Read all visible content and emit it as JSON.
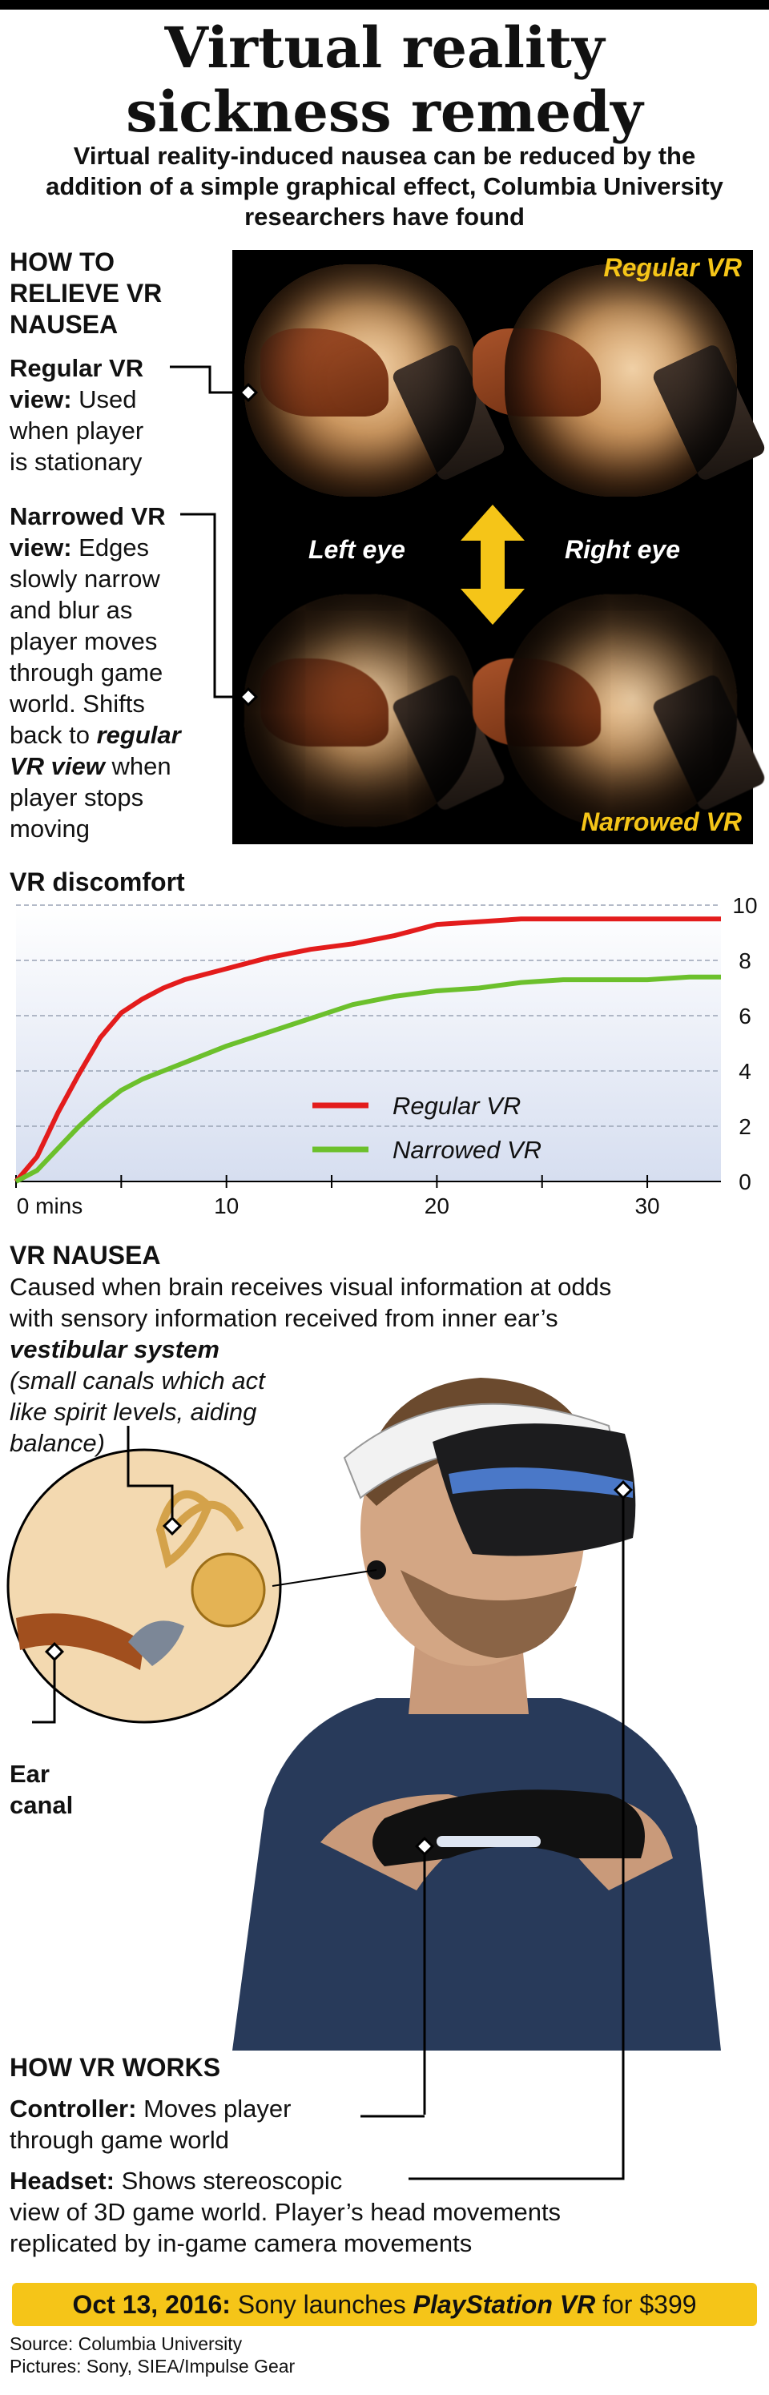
{
  "title_line1": "Virtual reality",
  "title_line2": "sickness remedy",
  "subtitle": "Virtual reality-induced nausea can be reduced by the addition of a simple graphical effect, Columbia University researchers have found",
  "relieve": {
    "heading_line1": "HOW TO",
    "heading_line2": "RELIEVE VR",
    "heading_line3": "NAUSEA",
    "regular_label_line1": "Regular VR",
    "regular_label_line2": "view:",
    "regular_desc_line1": "Used",
    "regular_desc_line2": "when player",
    "regular_desc_line3": "is stationary",
    "narrowed_label_line1": "Narrowed VR",
    "narrowed_label_line2": "view:",
    "narrowed_desc_line1": "Edges",
    "narrowed_desc_line2": "slowly narrow",
    "narrowed_desc_line3": "and blur as",
    "narrowed_desc_line4": "player moves",
    "narrowed_desc_line5": "through game",
    "narrowed_desc_line6": "world. Shifts",
    "narrowed_desc_line7": "back to",
    "narrowed_desc_emph1": "regular",
    "narrowed_desc_emph2": "VR view",
    "narrowed_desc_line8": "when",
    "narrowed_desc_line9": "player stops",
    "narrowed_desc_line10": "moving"
  },
  "lenses": {
    "regular_tag": "Regular VR",
    "narrowed_tag": "Narrowed VR",
    "left_eye": "Left eye",
    "right_eye": "Right eye",
    "arrow_color": "#f5c518"
  },
  "chart_data": {
    "type": "line",
    "title": "VR discomfort",
    "xlabel": "",
    "ylabel": "",
    "xlim": [
      0,
      33.5
    ],
    "ylim": [
      0,
      10
    ],
    "x_ticks": [
      "0 mins",
      "10",
      "20",
      "30"
    ],
    "y_ticks": [
      "0",
      "2",
      "4",
      "6",
      "8",
      "10"
    ],
    "legend_position": "bottom-center",
    "series": [
      {
        "name": "Regular VR",
        "color": "#e31c1c",
        "x": [
          0,
          1,
          2,
          3,
          4,
          5,
          6,
          7,
          8,
          9,
          10,
          12,
          14,
          16,
          18,
          20,
          22,
          24,
          26,
          28,
          30,
          32,
          33.5
        ],
        "y": [
          0,
          0.9,
          2.5,
          3.9,
          5.2,
          6.1,
          6.6,
          7.0,
          7.3,
          7.5,
          7.7,
          8.1,
          8.4,
          8.6,
          8.9,
          9.3,
          9.4,
          9.5,
          9.5,
          9.5,
          9.5,
          9.5,
          9.5
        ]
      },
      {
        "name": "Narrowed VR",
        "color": "#6cc02c",
        "x": [
          0,
          1,
          2,
          3,
          4,
          5,
          6,
          7,
          8,
          9,
          10,
          12,
          14,
          16,
          18,
          20,
          22,
          24,
          26,
          28,
          30,
          32,
          33.5
        ],
        "y": [
          0,
          0.4,
          1.2,
          2.0,
          2.7,
          3.3,
          3.7,
          4.0,
          4.3,
          4.6,
          4.9,
          5.4,
          5.9,
          6.4,
          6.7,
          6.9,
          7.0,
          7.2,
          7.3,
          7.3,
          7.3,
          7.4,
          7.4
        ]
      }
    ]
  },
  "nausea": {
    "heading": "VR NAUSEA",
    "line1": "Caused when brain receives visual information at odds",
    "line2": "with sensory information received from inner ear’s",
    "vestibular": "vestibular system",
    "paren1": "(small canals which act",
    "paren2": "like spirit levels, aiding",
    "paren3": "balance)",
    "ear_canal1": "Ear",
    "ear_canal2": "canal"
  },
  "works": {
    "heading": "HOW VR WORKS",
    "controller_label": "Controller:",
    "controller_desc1": "Moves player",
    "controller_desc2": "through game world",
    "headset_label": "Headset:",
    "headset_desc1": "Shows stereoscopic",
    "headset_desc2": "view of 3D game world. Player’s head movements",
    "headset_desc3": "replicated by in-game camera movements"
  },
  "footer": {
    "date": "Oct 13, 2016:",
    "text1": "Sony launches",
    "product": "PlayStation VR",
    "text2": "for $399",
    "bar_color": "#f5c518"
  },
  "credits": {
    "source": "Source: Columbia University",
    "pictures": "Pictures: Sony, SIEA/Impulse Gear"
  }
}
